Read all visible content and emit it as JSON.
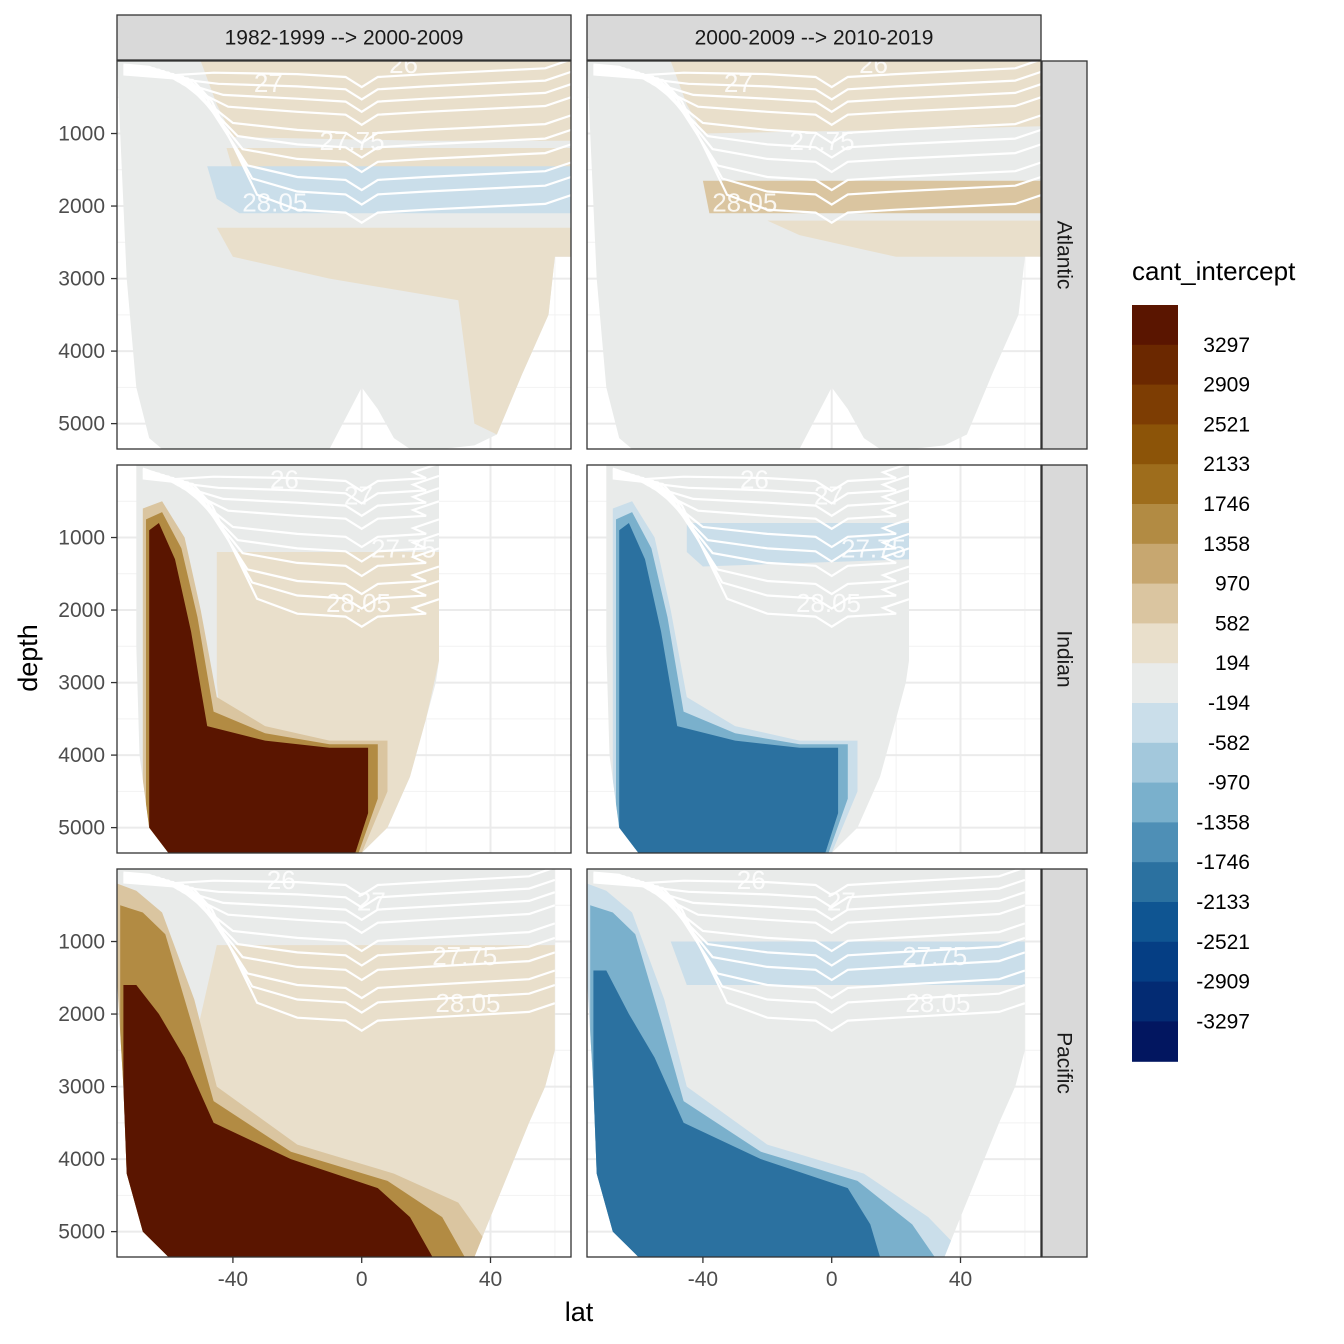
{
  "chart_data": {
    "type": "heatmap",
    "variable": "cant_intercept",
    "xlabel": "lat",
    "ylabel": "depth",
    "x_ticks": [
      -40,
      0,
      40
    ],
    "y_ticks": [
      1000,
      2000,
      3000,
      4000,
      5000
    ],
    "xlim": [
      -76,
      65
    ],
    "ylim_reversed": [
      5350,
      0
    ],
    "y_reversed": true,
    "columns": [
      "1982-1999 --> 2000-2009",
      "2000-2009 --> 2010-2019"
    ],
    "rows": [
      "Atlantic",
      "Indian",
      "Pacific"
    ],
    "legend": {
      "title": "cant_intercept",
      "position": "right",
      "labels": [
        "3297",
        "2909",
        "2521",
        "2133",
        "1746",
        "1358",
        "970",
        "582",
        "194",
        "-194",
        "-582",
        "-970",
        "-1358",
        "-1746",
        "-2133",
        "-2521",
        "-2909",
        "-3297"
      ],
      "colors": [
        "#5a1500",
        "#6b2800",
        "#7d3d03",
        "#8c5408",
        "#9e6d1c",
        "#b28b43",
        "#c7a770",
        "#dac5a0",
        "#e9dfcb",
        "#e9ebea",
        "#cadeea",
        "#a3c8dc",
        "#7ab0cc",
        "#4e8fb6",
        "#2b71a0",
        "#0f5592",
        "#053e84",
        "#032b73",
        "#021660"
      ]
    },
    "isopycnal_labels": [
      "26",
      "27",
      "27.75",
      "28.05"
    ],
    "panels": [
      {
        "basin": "Atlantic",
        "period": "1982-1999 --> 2000-2009",
        "pattern": "weak positive (194 to 582) in upper/intermediate layers and northern deep water; weak negative (-194 to -582) band near 28.05 isopycnal; near zero elsewhere"
      },
      {
        "basin": "Atlantic",
        "period": "2000-2009 --> 2010-2019",
        "pattern": "weak positive (194 to 970) in upper layer and band near 28.05 isopycnal (2000 m); near zero elsewhere"
      },
      {
        "basin": "Indian",
        "period": "1982-1999 --> 2000-2009",
        "pattern": "strong positive (>3297) in southern deep water south of 0; weak positive (194 to 582) in intermediate and deep layers"
      },
      {
        "basin": "Indian",
        "period": "2000-2009 --> 2010-2019",
        "pattern": "strong negative (-1746 to -2133) in southern deep water; weak negative band near 1000 m; near zero elsewhere"
      },
      {
        "basin": "Pacific",
        "period": "1982-1999 --> 2000-2009",
        "pattern": "strong positive (>3297) in southern deep water extending to ~30N at depth; weak positive (194 to 582) below 1000 m"
      },
      {
        "basin": "Pacific",
        "period": "2000-2009 --> 2010-2019",
        "pattern": "strong negative (-1746 to -2133) in southern deep water; weak negative band near 1000-1500 m; near zero elsewhere"
      }
    ]
  }
}
